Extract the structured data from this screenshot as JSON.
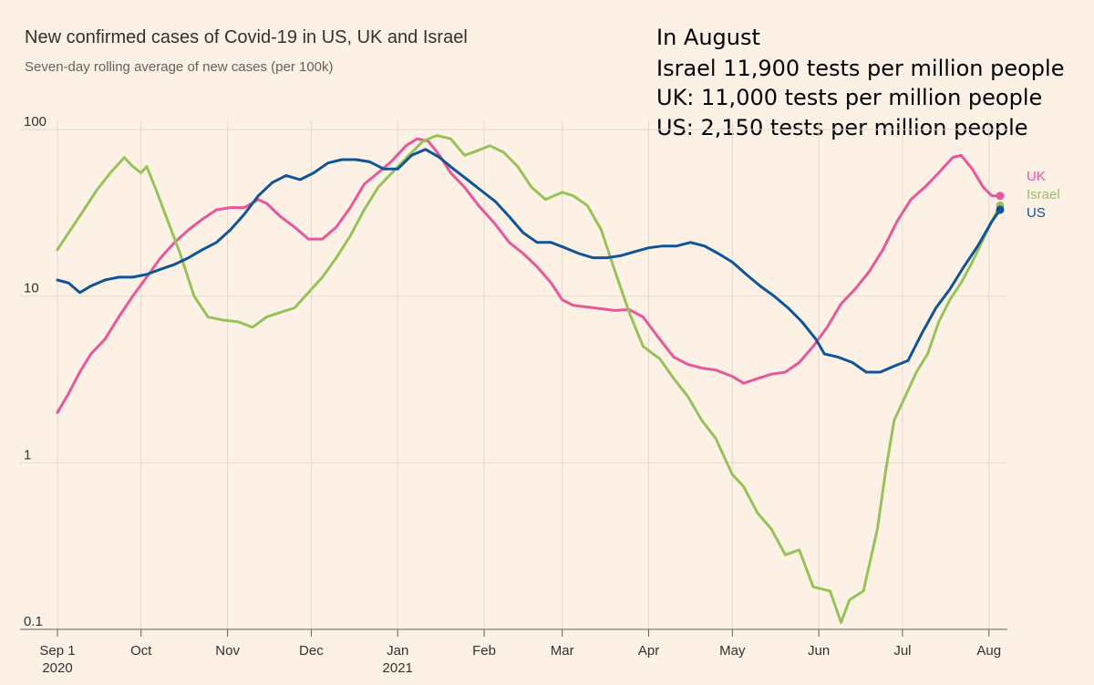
{
  "page": {
    "title": "New confirmed cases of Covid-19 in US, UK and Israel",
    "subtitle": "Seven-day rolling average of new cases (per 100k)",
    "note_lines": [
      "In August",
      "Israel  11,900 tests per million people",
      "UK: 11,000 tests per million people",
      "US: 2,150  tests per million  people"
    ]
  },
  "chart_data": {
    "type": "line",
    "title": "New confirmed cases of Covid-19 in US, UK and Israel",
    "subtitle": "Seven-day rolling average of new cases (per 100k)",
    "yscale": "log",
    "ylim": [
      0.1,
      100
    ],
    "yticks": [
      "100",
      "10",
      "1",
      "0.1"
    ],
    "ytick_values": [
      100,
      10,
      1,
      0.1
    ],
    "xlim": [
      "2020-09-01",
      "2021-08-05"
    ],
    "xticks": [
      {
        "date": "2020-09-01",
        "label": "Sep 1",
        "sublabel": "2020"
      },
      {
        "date": "2020-10-01",
        "label": "Oct",
        "sublabel": ""
      },
      {
        "date": "2020-11-01",
        "label": "Nov",
        "sublabel": ""
      },
      {
        "date": "2020-12-01",
        "label": "Dec",
        "sublabel": ""
      },
      {
        "date": "2021-01-01",
        "label": "Jan",
        "sublabel": "2021"
      },
      {
        "date": "2021-02-01",
        "label": "Feb",
        "sublabel": ""
      },
      {
        "date": "2021-03-01",
        "label": "Mar",
        "sublabel": ""
      },
      {
        "date": "2021-04-01",
        "label": "Apr",
        "sublabel": ""
      },
      {
        "date": "2021-05-01",
        "label": "May",
        "sublabel": ""
      },
      {
        "date": "2021-06-01",
        "label": "Jun",
        "sublabel": ""
      },
      {
        "date": "2021-07-01",
        "label": "Jul",
        "sublabel": ""
      },
      {
        "date": "2021-08-01",
        "label": "Aug",
        "sublabel": ""
      }
    ],
    "grid": "vertical",
    "legend": "right-end labels",
    "series": [
      {
        "name": "UK",
        "color": "#e8579a",
        "points": [
          [
            "2020-09-01",
            2.0
          ],
          [
            "2020-09-05",
            2.6
          ],
          [
            "2020-09-09",
            3.5
          ],
          [
            "2020-09-13",
            4.5
          ],
          [
            "2020-09-18",
            5.5
          ],
          [
            "2020-09-23",
            7.5
          ],
          [
            "2020-09-28",
            10.0
          ],
          [
            "2020-10-03",
            13.0
          ],
          [
            "2020-10-08",
            17.0
          ],
          [
            "2020-10-13",
            21.0
          ],
          [
            "2020-10-18",
            25.0
          ],
          [
            "2020-10-23",
            29.0
          ],
          [
            "2020-10-28",
            33.0
          ],
          [
            "2020-11-02",
            34.0
          ],
          [
            "2020-11-07",
            34.0
          ],
          [
            "2020-11-12",
            38.0
          ],
          [
            "2020-11-15",
            36.0
          ],
          [
            "2020-11-20",
            30.0
          ],
          [
            "2020-11-25",
            26.0
          ],
          [
            "2020-11-30",
            22.0
          ],
          [
            "2020-12-05",
            22.0
          ],
          [
            "2020-12-10",
            26.0
          ],
          [
            "2020-12-15",
            34.0
          ],
          [
            "2020-12-20",
            47.0
          ],
          [
            "2020-12-25",
            55.0
          ],
          [
            "2020-12-30",
            65.0
          ],
          [
            "2021-01-04",
            80.0
          ],
          [
            "2021-01-08",
            88.0
          ],
          [
            "2021-01-12",
            85.0
          ],
          [
            "2021-01-16",
            70.0
          ],
          [
            "2021-01-20",
            55.0
          ],
          [
            "2021-01-25",
            45.0
          ],
          [
            "2021-01-30",
            35.0
          ],
          [
            "2021-02-05",
            27.0
          ],
          [
            "2021-02-10",
            21.0
          ],
          [
            "2021-02-15",
            18.0
          ],
          [
            "2021-02-20",
            15.0
          ],
          [
            "2021-02-25",
            12.0
          ],
          [
            "2021-03-01",
            9.5
          ],
          [
            "2021-03-05",
            8.8
          ],
          [
            "2021-03-10",
            8.6
          ],
          [
            "2021-03-15",
            8.4
          ],
          [
            "2021-03-20",
            8.2
          ],
          [
            "2021-03-25",
            8.3
          ],
          [
            "2021-03-30",
            7.5
          ],
          [
            "2021-04-05",
            5.5
          ],
          [
            "2021-04-10",
            4.3
          ],
          [
            "2021-04-15",
            3.9
          ],
          [
            "2021-04-20",
            3.7
          ],
          [
            "2021-04-25",
            3.6
          ],
          [
            "2021-05-01",
            3.3
          ],
          [
            "2021-05-05",
            3.0
          ],
          [
            "2021-05-10",
            3.2
          ],
          [
            "2021-05-15",
            3.4
          ],
          [
            "2021-05-20",
            3.5
          ],
          [
            "2021-05-25",
            4.0
          ],
          [
            "2021-05-30",
            5.0
          ],
          [
            "2021-06-04",
            6.5
          ],
          [
            "2021-06-09",
            9.0
          ],
          [
            "2021-06-14",
            11.0
          ],
          [
            "2021-06-19",
            14.0
          ],
          [
            "2021-06-24",
            19.0
          ],
          [
            "2021-06-29",
            28.0
          ],
          [
            "2021-07-04",
            38.0
          ],
          [
            "2021-07-09",
            45.0
          ],
          [
            "2021-07-14",
            55.0
          ],
          [
            "2021-07-19",
            68.0
          ],
          [
            "2021-07-22",
            70.0
          ],
          [
            "2021-07-26",
            58.0
          ],
          [
            "2021-07-30",
            45.0
          ],
          [
            "2021-08-02",
            40.0
          ],
          [
            "2021-08-05",
            40.0
          ]
        ]
      },
      {
        "name": "Israel",
        "color": "#96c25a",
        "points": [
          [
            "2020-09-01",
            19.0
          ],
          [
            "2020-09-05",
            24.0
          ],
          [
            "2020-09-10",
            32.0
          ],
          [
            "2020-09-15",
            43.0
          ],
          [
            "2020-09-20",
            55.0
          ],
          [
            "2020-09-25",
            68.0
          ],
          [
            "2020-09-28",
            60.0
          ],
          [
            "2020-10-01",
            55.0
          ],
          [
            "2020-10-03",
            60.0
          ],
          [
            "2020-10-06",
            45.0
          ],
          [
            "2020-10-10",
            30.0
          ],
          [
            "2020-10-15",
            18.0
          ],
          [
            "2020-10-20",
            10.0
          ],
          [
            "2020-10-25",
            7.5
          ],
          [
            "2020-10-30",
            7.2
          ],
          [
            "2020-11-05",
            7.0
          ],
          [
            "2020-11-10",
            6.5
          ],
          [
            "2020-11-15",
            7.5
          ],
          [
            "2020-11-20",
            8.0
          ],
          [
            "2020-11-25",
            8.5
          ],
          [
            "2020-11-30",
            10.5
          ],
          [
            "2020-12-05",
            13.0
          ],
          [
            "2020-12-10",
            17.0
          ],
          [
            "2020-12-15",
            23.0
          ],
          [
            "2020-12-20",
            33.0
          ],
          [
            "2020-12-25",
            45.0
          ],
          [
            "2020-12-30",
            55.0
          ],
          [
            "2021-01-05",
            70.0
          ],
          [
            "2021-01-10",
            85.0
          ],
          [
            "2021-01-15",
            92.0
          ],
          [
            "2021-01-20",
            88.0
          ],
          [
            "2021-01-25",
            70.0
          ],
          [
            "2021-01-30",
            75.0
          ],
          [
            "2021-02-03",
            80.0
          ],
          [
            "2021-02-08",
            73.0
          ],
          [
            "2021-02-13",
            60.0
          ],
          [
            "2021-02-18",
            45.0
          ],
          [
            "2021-02-23",
            38.0
          ],
          [
            "2021-03-01",
            42.0
          ],
          [
            "2021-03-05",
            40.0
          ],
          [
            "2021-03-10",
            35.0
          ],
          [
            "2021-03-15",
            25.0
          ],
          [
            "2021-03-20",
            14.0
          ],
          [
            "2021-03-25",
            8.0
          ],
          [
            "2021-03-30",
            5.0
          ],
          [
            "2021-04-05",
            4.2
          ],
          [
            "2021-04-10",
            3.2
          ],
          [
            "2021-04-15",
            2.5
          ],
          [
            "2021-04-20",
            1.8
          ],
          [
            "2021-04-25",
            1.4
          ],
          [
            "2021-05-01",
            0.85
          ],
          [
            "2021-05-05",
            0.72
          ],
          [
            "2021-05-10",
            0.5
          ],
          [
            "2021-05-15",
            0.4
          ],
          [
            "2021-05-20",
            0.28
          ],
          [
            "2021-05-25",
            0.3
          ],
          [
            "2021-05-30",
            0.18
          ],
          [
            "2021-06-05",
            0.17
          ],
          [
            "2021-06-09",
            0.11
          ],
          [
            "2021-06-12",
            0.15
          ],
          [
            "2021-06-17",
            0.17
          ],
          [
            "2021-06-22",
            0.4
          ],
          [
            "2021-06-25",
            0.9
          ],
          [
            "2021-06-28",
            1.8
          ],
          [
            "2021-07-02",
            2.5
          ],
          [
            "2021-07-06",
            3.5
          ],
          [
            "2021-07-10",
            4.5
          ],
          [
            "2021-07-14",
            7.0
          ],
          [
            "2021-07-18",
            9.5
          ],
          [
            "2021-07-22",
            12.0
          ],
          [
            "2021-07-26",
            16.0
          ],
          [
            "2021-07-30",
            22.0
          ],
          [
            "2021-08-02",
            28.0
          ],
          [
            "2021-08-05",
            35.0
          ]
        ]
      },
      {
        "name": "US",
        "color": "#0f5499",
        "points": [
          [
            "2020-09-01",
            12.5
          ],
          [
            "2020-09-05",
            12.0
          ],
          [
            "2020-09-09",
            10.5
          ],
          [
            "2020-09-13",
            11.5
          ],
          [
            "2020-09-18",
            12.5
          ],
          [
            "2020-09-23",
            13.0
          ],
          [
            "2020-09-28",
            13.0
          ],
          [
            "2020-10-03",
            13.5
          ],
          [
            "2020-10-08",
            14.5
          ],
          [
            "2020-10-13",
            15.5
          ],
          [
            "2020-10-18",
            17.0
          ],
          [
            "2020-10-23",
            19.0
          ],
          [
            "2020-10-28",
            21.0
          ],
          [
            "2020-11-02",
            25.0
          ],
          [
            "2020-11-07",
            31.0
          ],
          [
            "2020-11-12",
            40.0
          ],
          [
            "2020-11-17",
            48.0
          ],
          [
            "2020-11-22",
            53.0
          ],
          [
            "2020-11-27",
            50.0
          ],
          [
            "2020-12-02",
            55.0
          ],
          [
            "2020-12-07",
            63.0
          ],
          [
            "2020-12-12",
            66.0
          ],
          [
            "2020-12-17",
            66.0
          ],
          [
            "2020-12-22",
            64.0
          ],
          [
            "2020-12-27",
            58.0
          ],
          [
            "2021-01-01",
            58.0
          ],
          [
            "2021-01-06",
            70.0
          ],
          [
            "2021-01-11",
            76.0
          ],
          [
            "2021-01-16",
            68.0
          ],
          [
            "2021-01-21",
            58.0
          ],
          [
            "2021-01-26",
            50.0
          ],
          [
            "2021-01-31",
            43.0
          ],
          [
            "2021-02-05",
            37.0
          ],
          [
            "2021-02-10",
            30.0
          ],
          [
            "2021-02-15",
            24.0
          ],
          [
            "2021-02-20",
            21.0
          ],
          [
            "2021-02-25",
            21.0
          ],
          [
            "2021-03-02",
            19.5
          ],
          [
            "2021-03-07",
            18.0
          ],
          [
            "2021-03-12",
            17.0
          ],
          [
            "2021-03-17",
            17.0
          ],
          [
            "2021-03-22",
            17.5
          ],
          [
            "2021-03-27",
            18.5
          ],
          [
            "2021-04-01",
            19.5
          ],
          [
            "2021-04-06",
            20.0
          ],
          [
            "2021-04-11",
            20.0
          ],
          [
            "2021-04-16",
            21.0
          ],
          [
            "2021-04-21",
            20.0
          ],
          [
            "2021-04-26",
            18.0
          ],
          [
            "2021-05-01",
            16.0
          ],
          [
            "2021-05-06",
            13.5
          ],
          [
            "2021-05-11",
            11.5
          ],
          [
            "2021-05-16",
            10.0
          ],
          [
            "2021-05-21",
            8.5
          ],
          [
            "2021-05-26",
            7.0
          ],
          [
            "2021-05-31",
            5.5
          ],
          [
            "2021-06-03",
            4.5
          ],
          [
            "2021-06-08",
            4.3
          ],
          [
            "2021-06-13",
            4.0
          ],
          [
            "2021-06-18",
            3.5
          ],
          [
            "2021-06-23",
            3.5
          ],
          [
            "2021-06-28",
            3.8
          ],
          [
            "2021-07-03",
            4.1
          ],
          [
            "2021-07-08",
            6.0
          ],
          [
            "2021-07-13",
            8.5
          ],
          [
            "2021-07-18",
            11.0
          ],
          [
            "2021-07-23",
            15.0
          ],
          [
            "2021-07-28",
            20.0
          ],
          [
            "2021-08-02",
            28.0
          ],
          [
            "2021-08-05",
            33.0
          ]
        ]
      }
    ]
  }
}
